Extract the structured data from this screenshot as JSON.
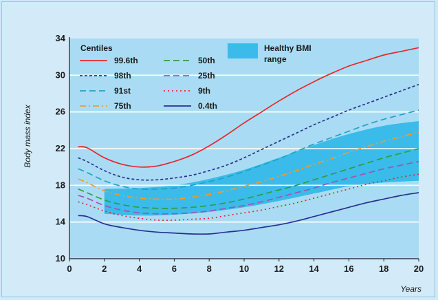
{
  "chart_data": {
    "type": "line",
    "xlabel": "Years",
    "ylabel": "Body mass index",
    "xlim": [
      0,
      20
    ],
    "ylim": [
      10,
      34
    ],
    "x_ticks": [
      0,
      2,
      4,
      6,
      8,
      10,
      12,
      14,
      16,
      18,
      20
    ],
    "y_ticks": [
      10,
      14,
      18,
      22,
      26,
      30,
      34
    ],
    "grid": "horizontal",
    "legend_title": "Centiles",
    "legend_placement": "top-left",
    "band": {
      "name": "Healthy BMI range",
      "color": "#3bbbe9",
      "x": [
        2,
        4,
        6,
        8,
        10,
        12,
        14,
        16,
        18,
        20
      ],
      "lower": [
        14.9,
        14.7,
        14.8,
        15.1,
        15.6,
        16.3,
        17.1,
        17.9,
        18.3,
        18.5
      ],
      "upper": [
        17.6,
        17.7,
        18.0,
        18.7,
        19.7,
        21.0,
        22.4,
        23.6,
        24.5,
        25.0
      ]
    },
    "band_legend_label": [
      "Healthy BMI",
      "range"
    ],
    "series": [
      {
        "name": "99.6th",
        "color": "#e8262b",
        "dash": "solid",
        "x": [
          0.5,
          1,
          2,
          3,
          4,
          5,
          6,
          7,
          8,
          9,
          10,
          11,
          12,
          13,
          14,
          15,
          16,
          17,
          18,
          19,
          20
        ],
        "y": [
          22.2,
          22.1,
          21.0,
          20.3,
          20.0,
          20.1,
          20.6,
          21.3,
          22.3,
          23.5,
          24.8,
          26.0,
          27.2,
          28.3,
          29.3,
          30.2,
          31.0,
          31.6,
          32.2,
          32.6,
          33.0
        ]
      },
      {
        "name": "98th",
        "color": "#2a2f8f",
        "dash": "short",
        "x": [
          0.5,
          1,
          2,
          3,
          4,
          5,
          6,
          7,
          8,
          9,
          10,
          11,
          12,
          13,
          14,
          15,
          16,
          17,
          18,
          19,
          20
        ],
        "y": [
          21.0,
          20.6,
          19.6,
          18.9,
          18.6,
          18.6,
          18.8,
          19.1,
          19.6,
          20.2,
          21.0,
          21.9,
          22.8,
          23.7,
          24.6,
          25.4,
          26.2,
          26.9,
          27.6,
          28.3,
          29.0
        ]
      },
      {
        "name": "91st",
        "color": "#1fa3c4",
        "dash": "long-dash",
        "x": [
          0.5,
          1,
          2,
          3,
          4,
          5,
          6,
          7,
          8,
          9,
          10,
          11,
          12,
          13,
          14,
          15,
          16,
          17,
          18,
          19,
          20
        ],
        "y": [
          19.8,
          19.4,
          18.5,
          17.9,
          17.6,
          17.6,
          17.7,
          18.0,
          18.4,
          18.9,
          19.5,
          20.2,
          20.9,
          21.7,
          22.5,
          23.2,
          23.9,
          24.6,
          25.2,
          25.7,
          26.2
        ]
      },
      {
        "name": "75th",
        "color": "#f29a2e",
        "dash": "dash-dot",
        "x": [
          0.5,
          1,
          2,
          3,
          4,
          5,
          6,
          7,
          8,
          9,
          10,
          11,
          12,
          13,
          14,
          15,
          16,
          17,
          18,
          19,
          20
        ],
        "y": [
          18.7,
          18.3,
          17.4,
          16.9,
          16.6,
          16.5,
          16.5,
          16.7,
          17.0,
          17.4,
          17.9,
          18.4,
          19.0,
          19.6,
          20.3,
          20.9,
          21.6,
          22.2,
          22.8,
          23.3,
          23.8
        ]
      },
      {
        "name": "50th",
        "color": "#2e9e3f",
        "dash": "long-dash",
        "x": [
          0.5,
          1,
          2,
          3,
          4,
          5,
          6,
          7,
          8,
          9,
          10,
          11,
          12,
          13,
          14,
          15,
          16,
          17,
          18,
          19,
          20
        ],
        "y": [
          17.6,
          17.2,
          16.4,
          15.9,
          15.6,
          15.5,
          15.5,
          15.6,
          15.8,
          16.1,
          16.5,
          17.0,
          17.5,
          18.0,
          18.6,
          19.2,
          19.8,
          20.4,
          21.0,
          21.5,
          22.0
        ]
      },
      {
        "name": "25th",
        "color": "#9b57b5",
        "dash": "long-dash",
        "x": [
          0.5,
          1,
          2,
          3,
          4,
          5,
          6,
          7,
          8,
          9,
          10,
          11,
          12,
          13,
          14,
          15,
          16,
          17,
          18,
          19,
          20
        ],
        "y": [
          16.9,
          16.6,
          15.8,
          15.3,
          15.0,
          14.9,
          14.9,
          15.0,
          15.2,
          15.5,
          15.8,
          16.2,
          16.7,
          17.2,
          17.7,
          18.3,
          18.8,
          19.3,
          19.8,
          20.2,
          20.6
        ]
      },
      {
        "name": "9th",
        "color": "#e8262b",
        "dash": "dot",
        "x": [
          0.5,
          1,
          2,
          3,
          4,
          5,
          6,
          7,
          8,
          9,
          10,
          11,
          12,
          13,
          14,
          15,
          16,
          17,
          18,
          19,
          20
        ],
        "y": [
          16.2,
          15.9,
          15.2,
          14.7,
          14.4,
          14.2,
          14.2,
          14.3,
          14.4,
          14.7,
          15.0,
          15.3,
          15.7,
          16.1,
          16.6,
          17.1,
          17.6,
          18.1,
          18.5,
          18.9,
          19.2
        ]
      },
      {
        "name": "0.4th",
        "color": "#2a2f8f",
        "dash": "solid",
        "x": [
          0.5,
          1,
          2,
          3,
          4,
          5,
          6,
          7,
          8,
          9,
          10,
          11,
          12,
          13,
          14,
          15,
          16,
          17,
          18,
          19,
          20
        ],
        "y": [
          14.7,
          14.6,
          13.8,
          13.4,
          13.1,
          12.9,
          12.8,
          12.7,
          12.7,
          12.9,
          13.1,
          13.4,
          13.7,
          14.1,
          14.6,
          15.1,
          15.6,
          16.1,
          16.5,
          16.9,
          17.2
        ]
      }
    ]
  }
}
